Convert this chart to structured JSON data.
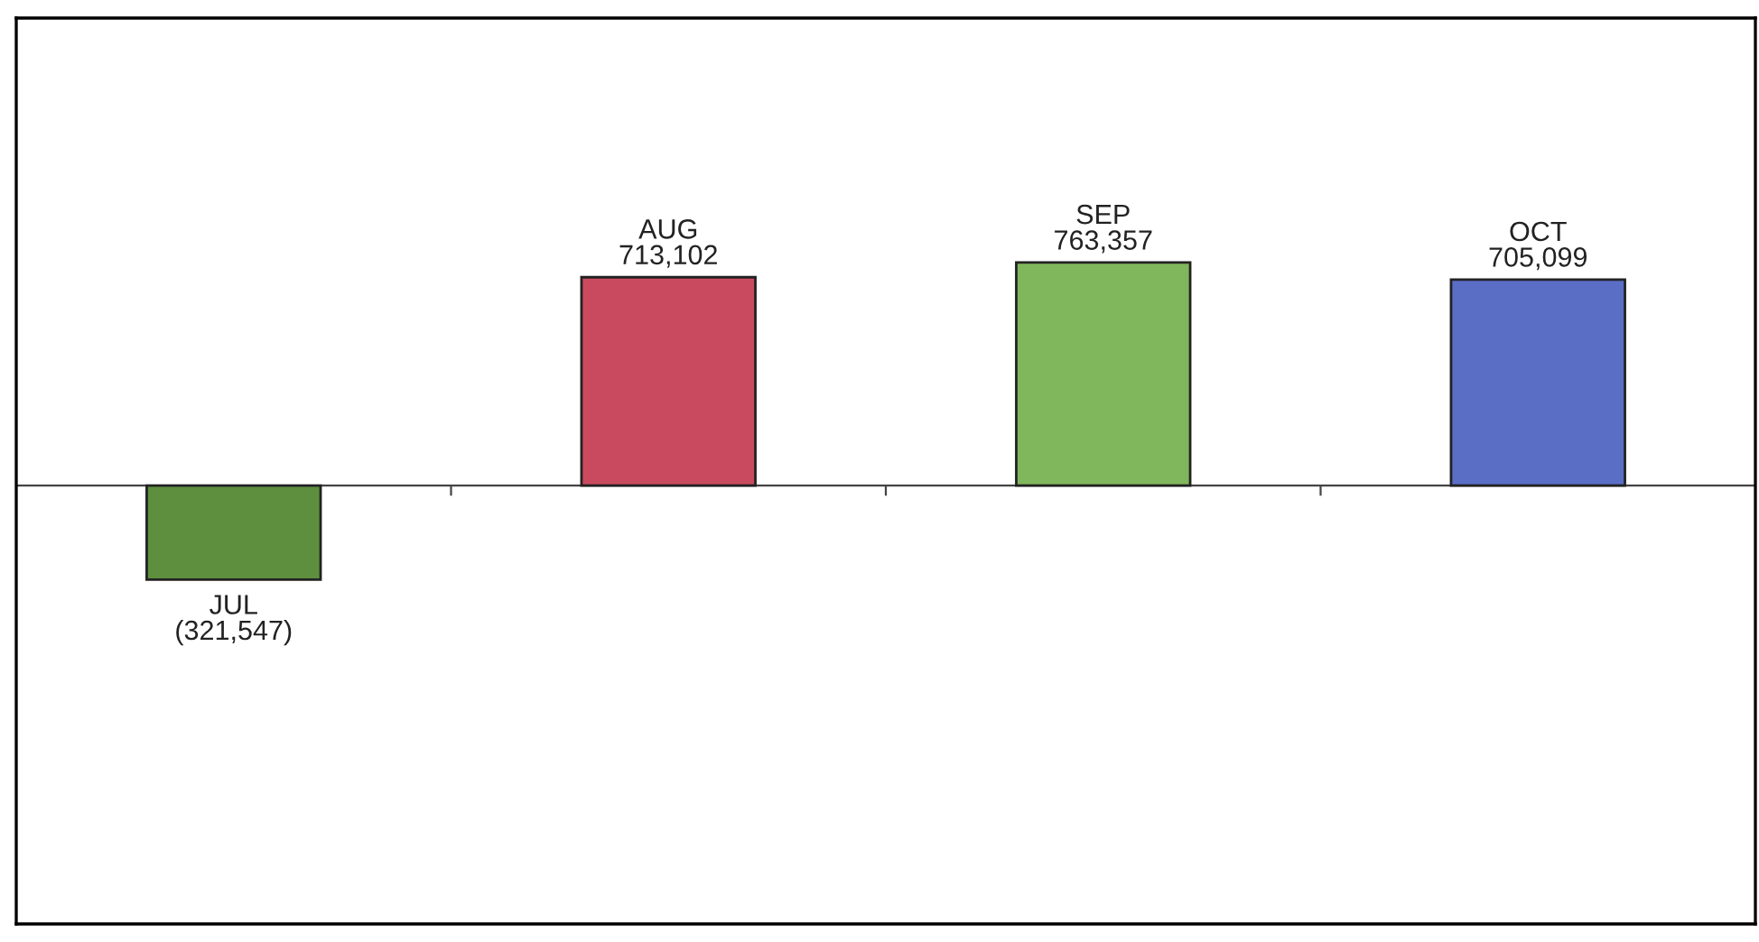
{
  "chart_data": {
    "type": "bar",
    "categories": [
      "JUL",
      "AUG",
      "SEP",
      "OCT"
    ],
    "values": [
      -321547,
      713102,
      763357,
      705099
    ],
    "colors": [
      "#5e8f3e",
      "#c94a5e",
      "#80b65c",
      "#5a6ec6"
    ],
    "value_labels": [
      "(321,547)",
      "713,102",
      "763,357",
      "705,099"
    ],
    "ylim": [
      -1500000,
      1600000
    ]
  }
}
